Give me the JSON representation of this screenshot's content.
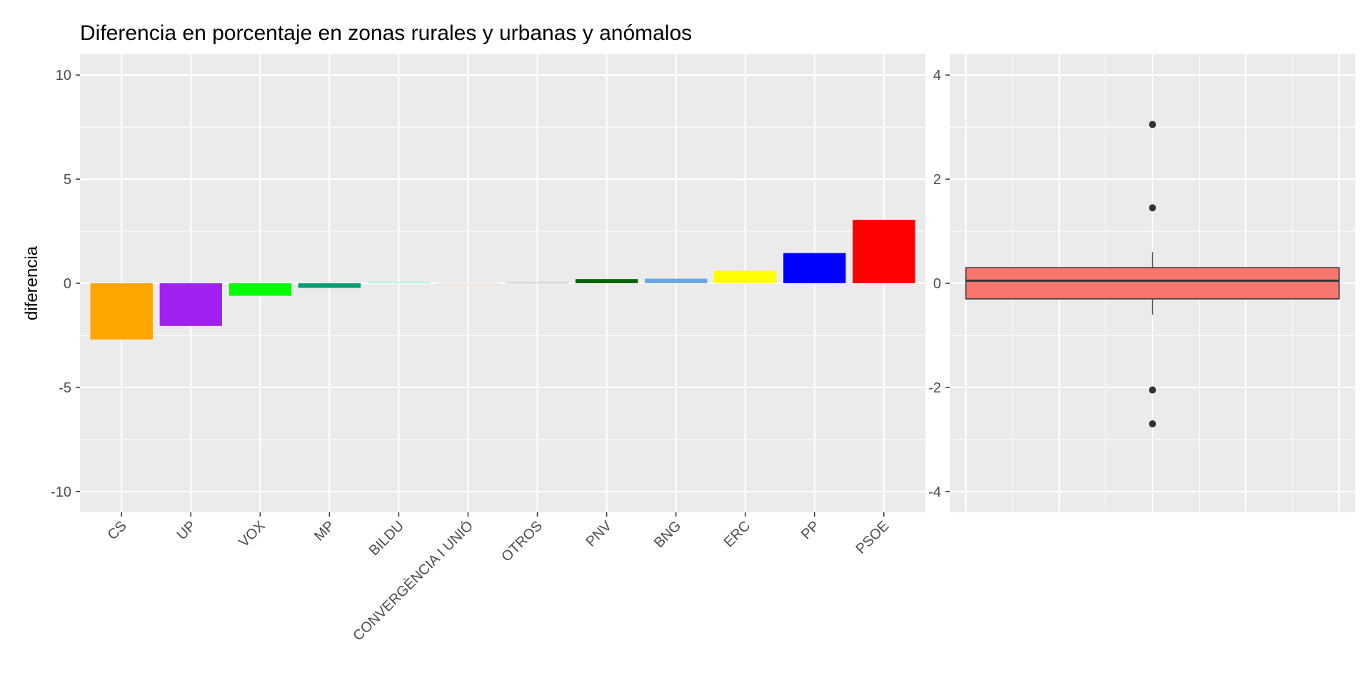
{
  "chart_data": [
    {
      "type": "bar",
      "title": "Diferencia en porcentaje en zonas rurales y urbanas y anómalos",
      "xlabel": "",
      "ylabel": "diferencia",
      "ylim": [
        -11,
        11
      ],
      "yticks": [
        -10,
        -5,
        0,
        5,
        10
      ],
      "grid": true,
      "categories": [
        "CS",
        "UP",
        "VOX",
        "MP",
        "BILDU",
        "CONVERGÈNCIA I UNIÓ",
        "OTROS",
        "PNV",
        "BNG",
        "ERC",
        "PP",
        "PSOE"
      ],
      "values": [
        -2.7,
        -2.05,
        -0.6,
        -0.22,
        0.05,
        -0.02,
        0.03,
        0.2,
        0.22,
        0.6,
        1.45,
        3.05
      ],
      "colors": [
        "#FFA500",
        "#A020F0",
        "#00FF00",
        "#009E73",
        "#7FFFD4",
        "#FFE4C4",
        "#A9A9A9",
        "#006400",
        "#6CA6E0",
        "#FFFF00",
        "#0000FF",
        "#FF0000"
      ]
    },
    {
      "type": "box",
      "ylim": [
        -4.4,
        4.4
      ],
      "yticks": [
        -4,
        -2,
        0,
        2,
        4
      ],
      "grid": true,
      "box": {
        "q1": -0.3,
        "median": 0.05,
        "q3": 0.3,
        "whisker_low": -0.6,
        "whisker_high": 0.6
      },
      "outliers": [
        3.05,
        1.45,
        -2.05,
        -2.7
      ],
      "fill_color": "#F8766D"
    }
  ]
}
